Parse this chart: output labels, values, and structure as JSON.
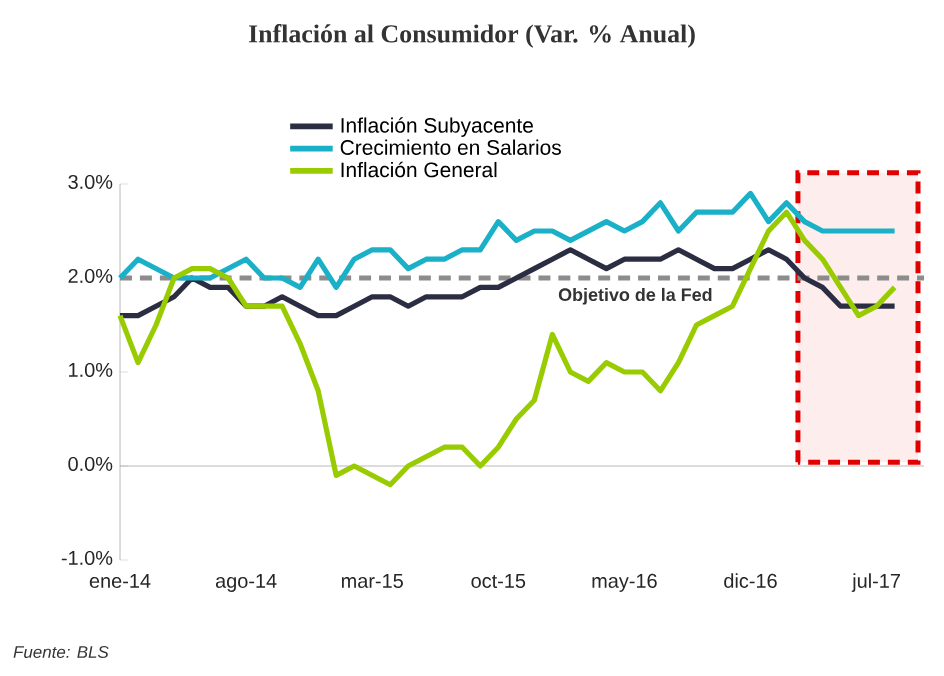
{
  "chart_data": {
    "type": "line",
    "title": "Inflación al Consumidor (Var. % Anual)",
    "x": [
      "2014-01",
      "2014-02",
      "2014-03",
      "2014-04",
      "2014-05",
      "2014-06",
      "2014-07",
      "2014-08",
      "2014-09",
      "2014-10",
      "2014-11",
      "2014-12",
      "2015-01",
      "2015-02",
      "2015-03",
      "2015-04",
      "2015-05",
      "2015-06",
      "2015-07",
      "2015-08",
      "2015-09",
      "2015-10",
      "2015-11",
      "2015-12",
      "2016-01",
      "2016-02",
      "2016-03",
      "2016-04",
      "2016-05",
      "2016-06",
      "2016-07",
      "2016-08",
      "2016-09",
      "2016-10",
      "2016-11",
      "2016-12",
      "2017-01",
      "2017-02",
      "2017-03",
      "2017-04",
      "2017-05",
      "2017-06",
      "2017-07",
      "2017-08"
    ],
    "series": [
      {
        "name": "Inflación Subyacente",
        "color": "#2b2d42",
        "values": [
          1.6,
          1.6,
          1.7,
          1.8,
          2.0,
          1.9,
          1.9,
          1.7,
          1.7,
          1.8,
          1.7,
          1.6,
          1.6,
          1.7,
          1.8,
          1.8,
          1.7,
          1.8,
          1.8,
          1.8,
          1.9,
          1.9,
          2.0,
          2.1,
          2.2,
          2.3,
          2.2,
          2.1,
          2.2,
          2.2,
          2.2,
          2.3,
          2.2,
          2.1,
          2.1,
          2.2,
          2.3,
          2.2,
          2.0,
          1.9,
          1.7,
          1.7,
          1.7,
          1.7
        ]
      },
      {
        "name": "Crecimiento en Salarios",
        "color": "#1ab0c8",
        "values": [
          2.0,
          2.2,
          2.1,
          2.0,
          2.0,
          2.0,
          2.1,
          2.2,
          2.0,
          2.0,
          1.9,
          2.2,
          1.9,
          2.2,
          2.3,
          2.3,
          2.1,
          2.2,
          2.2,
          2.3,
          2.3,
          2.6,
          2.4,
          2.5,
          2.5,
          2.4,
          2.5,
          2.6,
          2.5,
          2.6,
          2.8,
          2.5,
          2.7,
          2.7,
          2.7,
          2.9,
          2.6,
          2.8,
          2.6,
          2.5,
          2.5,
          2.5,
          2.5,
          2.5
        ]
      },
      {
        "name": "Inflación General",
        "color": "#99cc00",
        "values": [
          1.6,
          1.1,
          1.5,
          2.0,
          2.1,
          2.1,
          2.0,
          1.7,
          1.7,
          1.7,
          1.3,
          0.8,
          -0.1,
          0.0,
          -0.1,
          -0.2,
          0.0,
          0.1,
          0.2,
          0.2,
          0.0,
          0.2,
          0.5,
          0.7,
          1.4,
          1.0,
          0.9,
          1.1,
          1.0,
          1.0,
          0.8,
          1.1,
          1.5,
          1.6,
          1.7,
          2.1,
          2.5,
          2.7,
          2.4,
          2.2,
          1.9,
          1.6,
          1.7,
          1.9
        ]
      }
    ],
    "xlim": [
      "2014-01",
      "2017-09-20"
    ],
    "xticks": [
      {
        "value": "2014-01",
        "label": "ene-14"
      },
      {
        "value": "2014-08",
        "label": "ago-14"
      },
      {
        "value": "2015-03",
        "label": "mar-15"
      },
      {
        "value": "2015-10",
        "label": "oct-15"
      },
      {
        "value": "2016-05",
        "label": "may-16"
      },
      {
        "value": "2016-12",
        "label": "dic-16"
      },
      {
        "value": "2017-07",
        "label": "jul-17"
      }
    ],
    "ylim": [
      -1,
      3
    ],
    "yticks": [
      {
        "value": -1,
        "label": "-1.0%"
      },
      {
        "value": 0,
        "label": "0.0%"
      },
      {
        "value": 1,
        "label": "1.0%"
      },
      {
        "value": 2,
        "label": "2.0%"
      },
      {
        "value": 3,
        "label": "3.0%"
      }
    ],
    "ref_lines": [
      {
        "axis": "y",
        "value": 2,
        "label": "Objetivo de la Fed",
        "color": "#8c8c8c",
        "line_style": "dashed"
      }
    ],
    "bands": [
      {
        "axis": "x",
        "from": "2017-02-20",
        "to": "2017-09-10",
        "color": "#e00000"
      }
    ],
    "annotations": [
      "Fuente: BLS"
    ],
    "legend": "top",
    "grid": false,
    "marker": "none",
    "line_style": "solid"
  }
}
